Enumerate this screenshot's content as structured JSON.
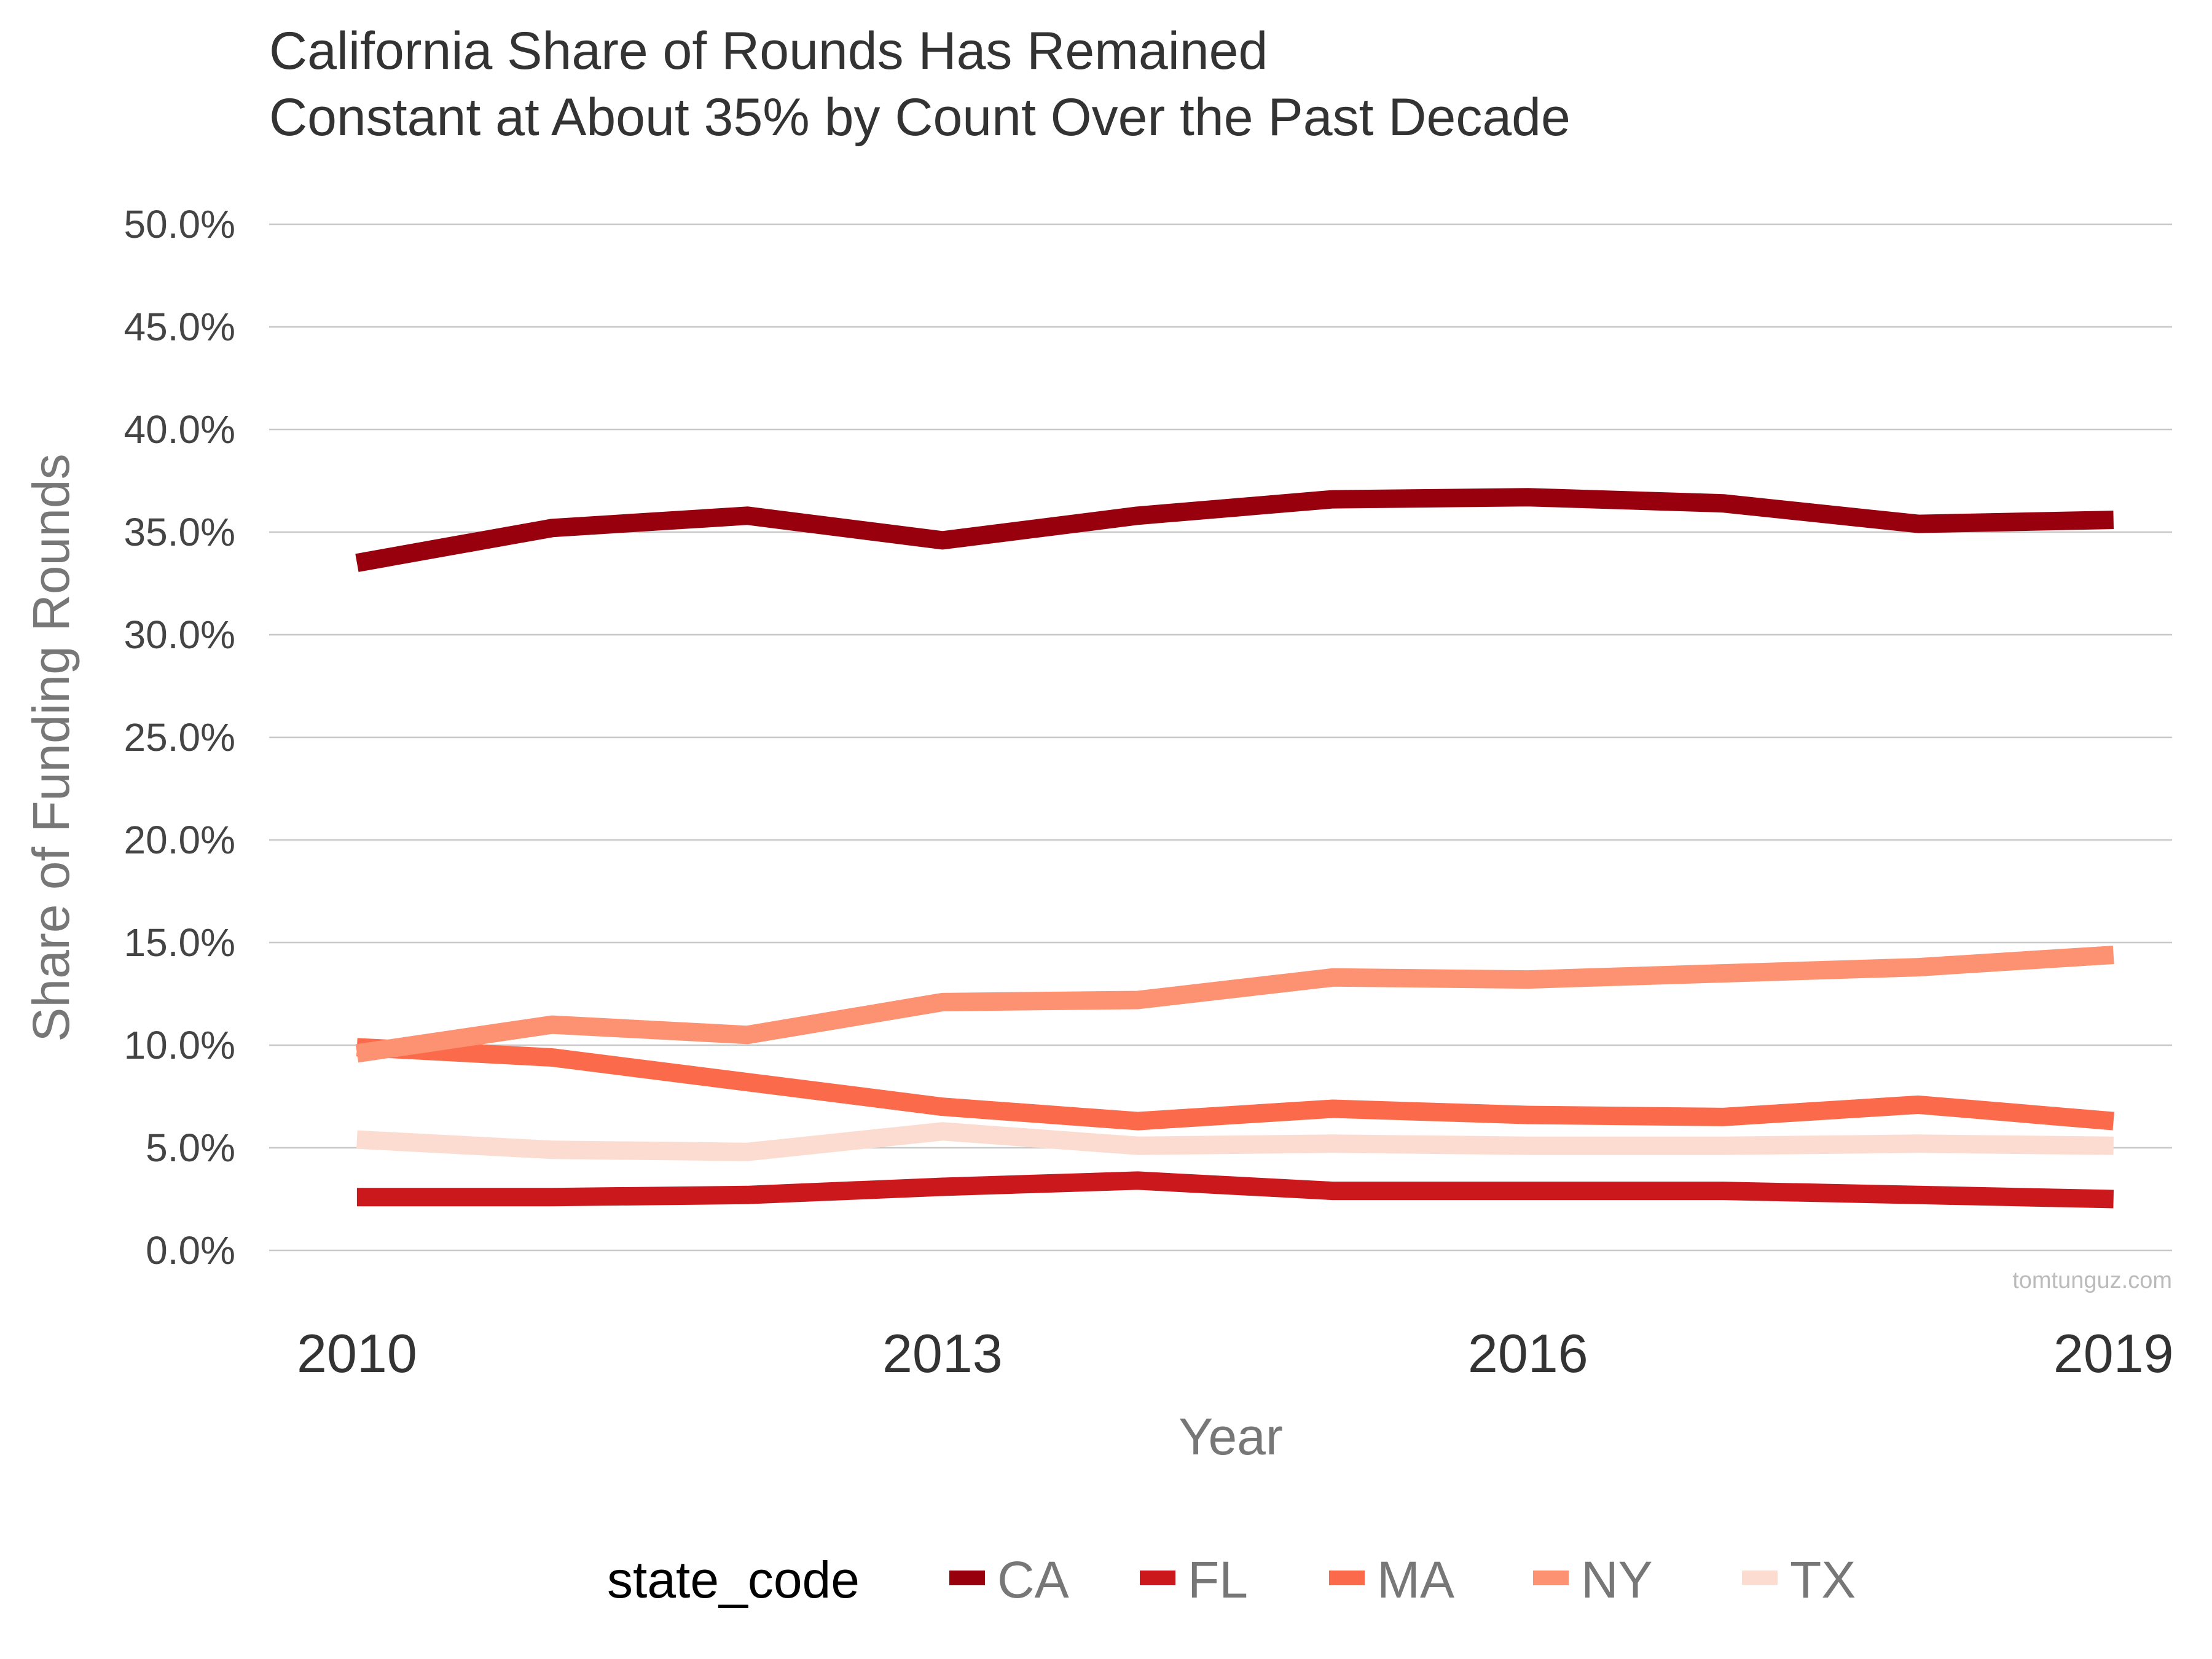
{
  "chart_data": {
    "type": "line",
    "title_lines": [
      "California Share of Rounds Has Remained",
      "Constant at About 35% by Count Over the Past Decade"
    ],
    "xlabel": "Year",
    "ylabel": "Share of Funding Rounds",
    "x": [
      2010,
      2011,
      2012,
      2013,
      2014,
      2015,
      2016,
      2017,
      2018,
      2019
    ],
    "x_ticks": [
      2010,
      2013,
      2016,
      2019
    ],
    "x_tick_labels": [
      "2010",
      "2013",
      "2016",
      "2019"
    ],
    "xlim": [
      2009.55,
      2019.3
    ],
    "ylim": [
      0,
      0.5
    ],
    "y_ticks": [
      0,
      0.05,
      0.1,
      0.15,
      0.2,
      0.25,
      0.3,
      0.35,
      0.4,
      0.45,
      0.5
    ],
    "y_tick_labels": [
      "0.0%",
      "5.0%",
      "10.0%",
      "15.0%",
      "20.0%",
      "25.0%",
      "30.0%",
      "35.0%",
      "40.0%",
      "45.0%",
      "50.0%"
    ],
    "grid": "horizontal",
    "legend": {
      "title": "state_code",
      "placement": "bottom"
    },
    "series": [
      {
        "name": "CA",
        "color": "#99000d",
        "values": [
          0.335,
          0.352,
          0.358,
          0.346,
          0.358,
          0.366,
          0.367,
          0.364,
          0.354,
          0.356
        ]
      },
      {
        "name": "FL",
        "color": "#cb181d",
        "values": [
          0.026,
          0.026,
          0.027,
          0.031,
          0.034,
          0.029,
          0.029,
          0.029,
          0.027,
          0.025
        ]
      },
      {
        "name": "MA",
        "color": "#fb6a4a",
        "values": [
          0.099,
          0.094,
          0.082,
          0.07,
          0.063,
          0.069,
          0.066,
          0.065,
          0.071,
          0.063
        ]
      },
      {
        "name": "NY",
        "color": "#fc9272",
        "values": [
          0.096,
          0.11,
          0.105,
          0.121,
          0.122,
          0.133,
          0.132,
          0.135,
          0.138,
          0.144
        ]
      },
      {
        "name": "TX",
        "color": "#fcdcd0",
        "values": [
          0.054,
          0.049,
          0.048,
          0.058,
          0.051,
          0.052,
          0.051,
          0.051,
          0.052,
          0.051
        ]
      }
    ],
    "caption": "tomtunguz.com"
  }
}
